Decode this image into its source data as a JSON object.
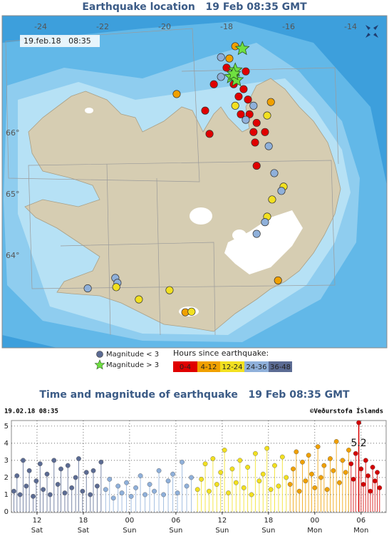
{
  "map": {
    "title": "Earthquake location   19 Feb 08:35 GMT",
    "timestamp": "19.feb.18   08:35",
    "lon_ticks": [
      -24,
      -22,
      -20,
      -18,
      -16,
      -14
    ],
    "lat_ticks": [
      {
        "value": 66,
        "label": "66°"
      },
      {
        "value": 65,
        "label": "65°"
      },
      {
        "value": 64,
        "label": "64°"
      }
    ],
    "magnitude_legend": [
      "Magnitude < 3",
      "Magnitude > 3"
    ],
    "star_color": "#6fe040",
    "hours_title": "Hours since earthquake:",
    "hours_classes": [
      {
        "label": "0-4",
        "color": "#e00000"
      },
      {
        "label": "4-12",
        "color": "#f0a000"
      },
      {
        "label": "12-24",
        "color": "#f2e020"
      },
      {
        "label": "24-36",
        "color": "#8fb0da"
      },
      {
        "label": "36-48",
        "color": "#5b6b93"
      }
    ],
    "quakes": [
      {
        "lon": -19.61,
        "lat": 66.64,
        "class": 1
      },
      {
        "lon": -18.69,
        "lat": 66.37,
        "class": 0
      },
      {
        "lon": -18.55,
        "lat": 65.99,
        "class": 0
      },
      {
        "lon": -18.41,
        "lat": 66.8,
        "class": 0
      },
      {
        "lon": -18.18,
        "lat": 66.92,
        "class": 3
      },
      {
        "lon": -18.0,
        "lat": 67.07,
        "class": 0
      },
      {
        "lon": -17.91,
        "lat": 67.22,
        "class": 1
      },
      {
        "lon": -17.77,
        "lat": 66.8,
        "class": 0
      },
      {
        "lon": -17.61,
        "lat": 66.6,
        "class": 0
      },
      {
        "lon": -17.45,
        "lat": 66.72,
        "class": 0
      },
      {
        "lon": -17.31,
        "lat": 66.55,
        "class": 0
      },
      {
        "lon": -17.72,
        "lat": 66.45,
        "class": 2
      },
      {
        "lon": -17.26,
        "lat": 66.31,
        "class": 0
      },
      {
        "lon": -17.54,
        "lat": 66.31,
        "class": 0
      },
      {
        "lon": -17.13,
        "lat": 66.45,
        "class": 3
      },
      {
        "lon": -17.38,
        "lat": 66.22,
        "class": 3
      },
      {
        "lon": -17.03,
        "lat": 66.17,
        "class": 0
      },
      {
        "lon": -16.69,
        "lat": 66.29,
        "class": 2
      },
      {
        "lon": -16.57,
        "lat": 66.51,
        "class": 1
      },
      {
        "lon": -17.13,
        "lat": 66.02,
        "class": 0
      },
      {
        "lon": -16.76,
        "lat": 66.02,
        "class": 0
      },
      {
        "lon": -17.08,
        "lat": 65.85,
        "class": 0
      },
      {
        "lon": -16.64,
        "lat": 65.79,
        "class": 3
      },
      {
        "lon": -17.03,
        "lat": 65.47,
        "class": 0
      },
      {
        "lon": -16.46,
        "lat": 65.35,
        "class": 3
      },
      {
        "lon": -16.16,
        "lat": 65.13,
        "class": 2
      },
      {
        "lon": -16.23,
        "lat": 65.06,
        "class": 3
      },
      {
        "lon": -16.53,
        "lat": 64.92,
        "class": 2
      },
      {
        "lon": -16.69,
        "lat": 64.64,
        "class": 2
      },
      {
        "lon": -16.76,
        "lat": 64.55,
        "class": 3
      },
      {
        "lon": -17.03,
        "lat": 64.36,
        "class": 3
      },
      {
        "lon": -16.34,
        "lat": 63.6,
        "class": 1
      },
      {
        "lon": -21.59,
        "lat": 63.64,
        "class": 3
      },
      {
        "lon": -21.52,
        "lat": 63.56,
        "class": 3
      },
      {
        "lon": -22.48,
        "lat": 63.47,
        "class": 3
      },
      {
        "lon": -21.56,
        "lat": 63.49,
        "class": 2
      },
      {
        "lon": -20.83,
        "lat": 63.29,
        "class": 2
      },
      {
        "lon": -19.84,
        "lat": 63.44,
        "class": 2
      },
      {
        "lon": -19.33,
        "lat": 63.08,
        "class": 1
      },
      {
        "lon": -19.13,
        "lat": 63.09,
        "class": 2
      },
      {
        "lon": -18.18,
        "lat": 67.24,
        "class": 3
      },
      {
        "lon": -17.72,
        "lat": 67.42,
        "class": 1
      },
      {
        "lon": -17.38,
        "lat": 67.01,
        "class": 0
      }
    ],
    "stars": [
      {
        "lon": -17.49,
        "lat": 67.38
      },
      {
        "lon": -17.72,
        "lat": 67.03
      },
      {
        "lon": -17.84,
        "lat": 66.92
      },
      {
        "lon": -17.68,
        "lat": 66.87
      },
      {
        "lon": -17.77,
        "lat": 66.97
      }
    ]
  },
  "chart_data": {
    "type": "stem",
    "title": "Time and magnitude of earthquake   19 Feb 08:35 GMT",
    "timestamp": "19.02.18 08:35",
    "credit": "©Veðurstofa Íslands",
    "xlim": [
      8.68,
      57.25
    ],
    "ylim": [
      0,
      5.2
    ],
    "xticks": [
      12,
      18,
      {
        "value": 24,
        "label": "00"
      },
      {
        "value": 30,
        "label": "06"
      },
      {
        "value": 36,
        "label": "12"
      },
      {
        "value": 42,
        "label": "18"
      },
      {
        "value": 48,
        "label": "00"
      },
      {
        "value": 54,
        "label": "06"
      }
    ],
    "xtick_days": [
      "Sat",
      "Sat",
      "Sun",
      "Sun",
      "Sun",
      "Sun",
      "Mon",
      "Mon"
    ],
    "yticks": [
      0,
      1,
      2,
      3,
      4,
      5
    ],
    "grid": true,
    "highlight": {
      "series": 4,
      "index": 3,
      "color": "#e00000"
    },
    "series": [
      {
        "color": "#5b6b93",
        "x": [
          9.0,
          9.4,
          9.8,
          10.2,
          10.6,
          11.0,
          11.5,
          11.9,
          12.4,
          12.8,
          13.3,
          13.7,
          14.2,
          14.7,
          15.1,
          15.6,
          16.0,
          16.5,
          17.0,
          17.4,
          17.9,
          18.4,
          18.9,
          19.3,
          19.8,
          20.3
        ],
        "values": [
          1.2,
          2.1,
          1.0,
          3.0,
          1.5,
          2.4,
          0.9,
          1.8,
          2.8,
          1.3,
          2.2,
          1.0,
          3.0,
          1.6,
          2.5,
          1.1,
          2.7,
          1.4,
          2.0,
          3.1,
          1.2,
          2.3,
          1.0,
          2.4,
          1.5,
          2.9
        ]
      },
      {
        "color": "#8fb0da",
        "x": [
          20.9,
          21.4,
          21.9,
          22.5,
          23.0,
          23.6,
          24.2,
          24.8,
          25.4,
          26.0,
          26.6,
          27.2,
          27.8,
          28.4,
          29.0,
          29.6,
          30.2,
          30.8,
          31.4,
          32.0
        ],
        "values": [
          1.3,
          1.9,
          0.8,
          1.5,
          1.1,
          1.7,
          0.9,
          1.4,
          2.1,
          1.0,
          1.6,
          1.2,
          2.4,
          1.0,
          1.8,
          2.2,
          1.1,
          2.9,
          1.5,
          2.0
        ]
      },
      {
        "color": "#f2e020",
        "x": [
          32.8,
          33.3,
          33.8,
          34.3,
          34.8,
          35.3,
          35.8,
          36.3,
          36.8,
          37.3,
          37.8,
          38.3,
          38.8,
          39.3,
          39.8,
          40.3,
          40.8,
          41.3,
          41.8,
          42.3,
          42.8,
          43.3,
          43.8,
          44.3
        ],
        "values": [
          1.3,
          1.9,
          2.8,
          1.2,
          3.1,
          1.6,
          2.3,
          3.6,
          1.1,
          2.5,
          1.7,
          3.0,
          1.4,
          2.6,
          1.0,
          3.4,
          1.8,
          2.2,
          3.7,
          1.3,
          2.7,
          1.5,
          3.2,
          2.0
        ]
      },
      {
        "color": "#f0a000",
        "x": [
          44.8,
          45.2,
          45.6,
          46.0,
          46.4,
          46.8,
          47.2,
          47.6,
          48.0,
          48.4,
          48.8,
          49.2,
          49.6,
          50.0,
          50.4,
          50.8,
          51.2,
          51.6,
          52.0,
          52.4
        ],
        "values": [
          1.6,
          2.5,
          3.5,
          1.2,
          2.9,
          1.8,
          3.3,
          2.2,
          1.4,
          3.8,
          2.0,
          2.7,
          1.3,
          3.1,
          2.4,
          4.1,
          1.7,
          3.0,
          2.3,
          3.6
        ]
      },
      {
        "color": "#d40000",
        "x": [
          52.7,
          53.0,
          53.3,
          53.7,
          54.0,
          54.3,
          54.6,
          54.9,
          55.2,
          55.5,
          55.8,
          56.1,
          56.4
        ],
        "values": [
          2.8,
          1.9,
          3.4,
          5.2,
          2.5,
          1.6,
          3.0,
          2.1,
          1.2,
          2.6,
          1.8,
          2.3,
          1.4
        ]
      }
    ]
  }
}
